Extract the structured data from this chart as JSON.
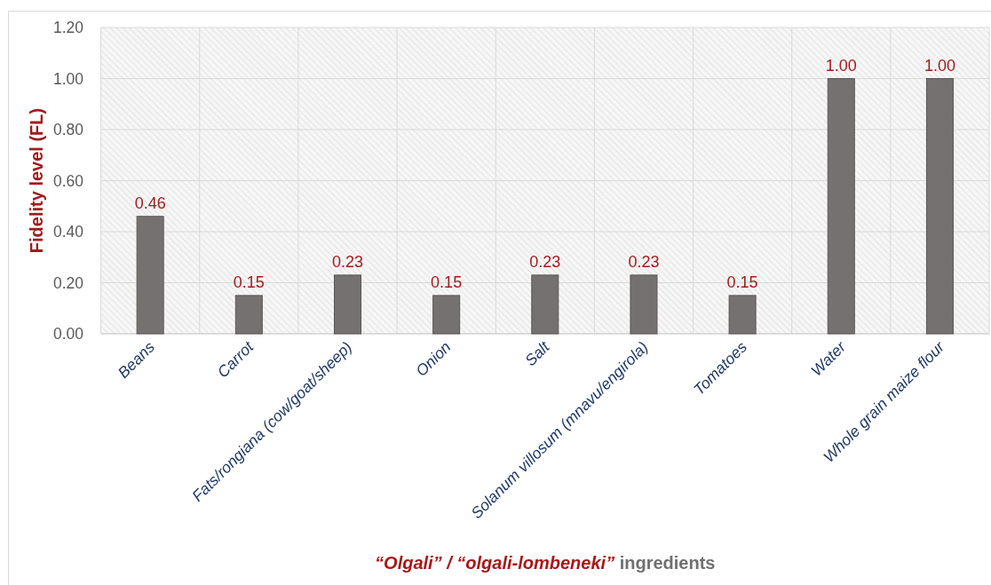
{
  "chart_data": {
    "type": "bar",
    "xlabel": "“Olgali” / “olgali-lombeneki” ingredients",
    "ylabel": "Fidelity level (FL)",
    "categories": [
      "Beans",
      "Carrot",
      "Fats/rongiana (cow/goat/sheep)",
      "Onion",
      "Salt",
      "Solanum villosum (mnavu/engirola)",
      "Tomatoes",
      "Water",
      "Whole grain maize flour"
    ],
    "values": [
      0.46,
      0.15,
      0.23,
      0.15,
      0.23,
      0.23,
      0.15,
      1.0,
      1.0
    ],
    "value_labels": [
      "0.46",
      "0.15",
      "0.23",
      "0.15",
      "0.23",
      "0.23",
      "0.15",
      "1.00",
      "1.00"
    ],
    "color": "#767171",
    "ylim": [
      0,
      1.2
    ],
    "yticks": [
      {
        "value": 0,
        "label": "0.00"
      },
      {
        "value": 0.2,
        "label": "0.20"
      },
      {
        "value": 0.4,
        "label": "0.40"
      },
      {
        "value": 0.6,
        "label": "0.60"
      },
      {
        "value": 0.8,
        "label": "0.80"
      },
      {
        "value": 1.0,
        "label": "1.00"
      },
      {
        "value": 1.2,
        "label": "1.20"
      }
    ],
    "grid": true
  }
}
